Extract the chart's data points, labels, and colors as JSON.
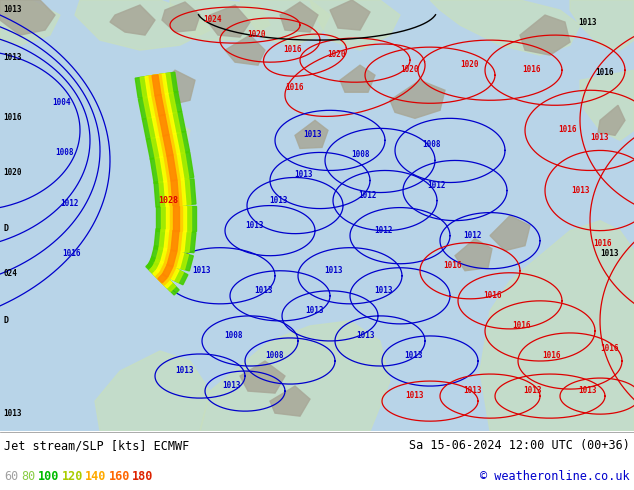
{
  "title_left": "Jet stream/SLP [kts] ECMWF",
  "title_right": "Sa 15-06-2024 12:00 UTC (00+36)",
  "copyright": "© weatheronline.co.uk",
  "legend_values": [
    "60",
    "80",
    "100",
    "120",
    "140",
    "160",
    "180"
  ],
  "legend_colors": [
    "#a0a0a0",
    "#88cc44",
    "#00bb00",
    "#aacc00",
    "#ffaa00",
    "#ff6600",
    "#dd2200"
  ],
  "bg_color": "#ffffff",
  "map_bg": "#c8dff0",
  "bottom_bg": "#ffffff",
  "copyright_color": "#0000cc",
  "figsize": [
    6.34,
    4.9
  ],
  "dpi": 100,
  "map_ocean": "#b8d4e8",
  "land_green": "#c8dfc0",
  "land_gray": "#a8a898",
  "contour_red": "#dd0000",
  "contour_blue": "#0000cc",
  "jet_colors": [
    "#44cc00",
    "#aaee00",
    "#ffff00",
    "#ffcc00",
    "#ff8800"
  ],
  "bottom_line1_color": "#000000",
  "bottom_line2_color": "#000000"
}
